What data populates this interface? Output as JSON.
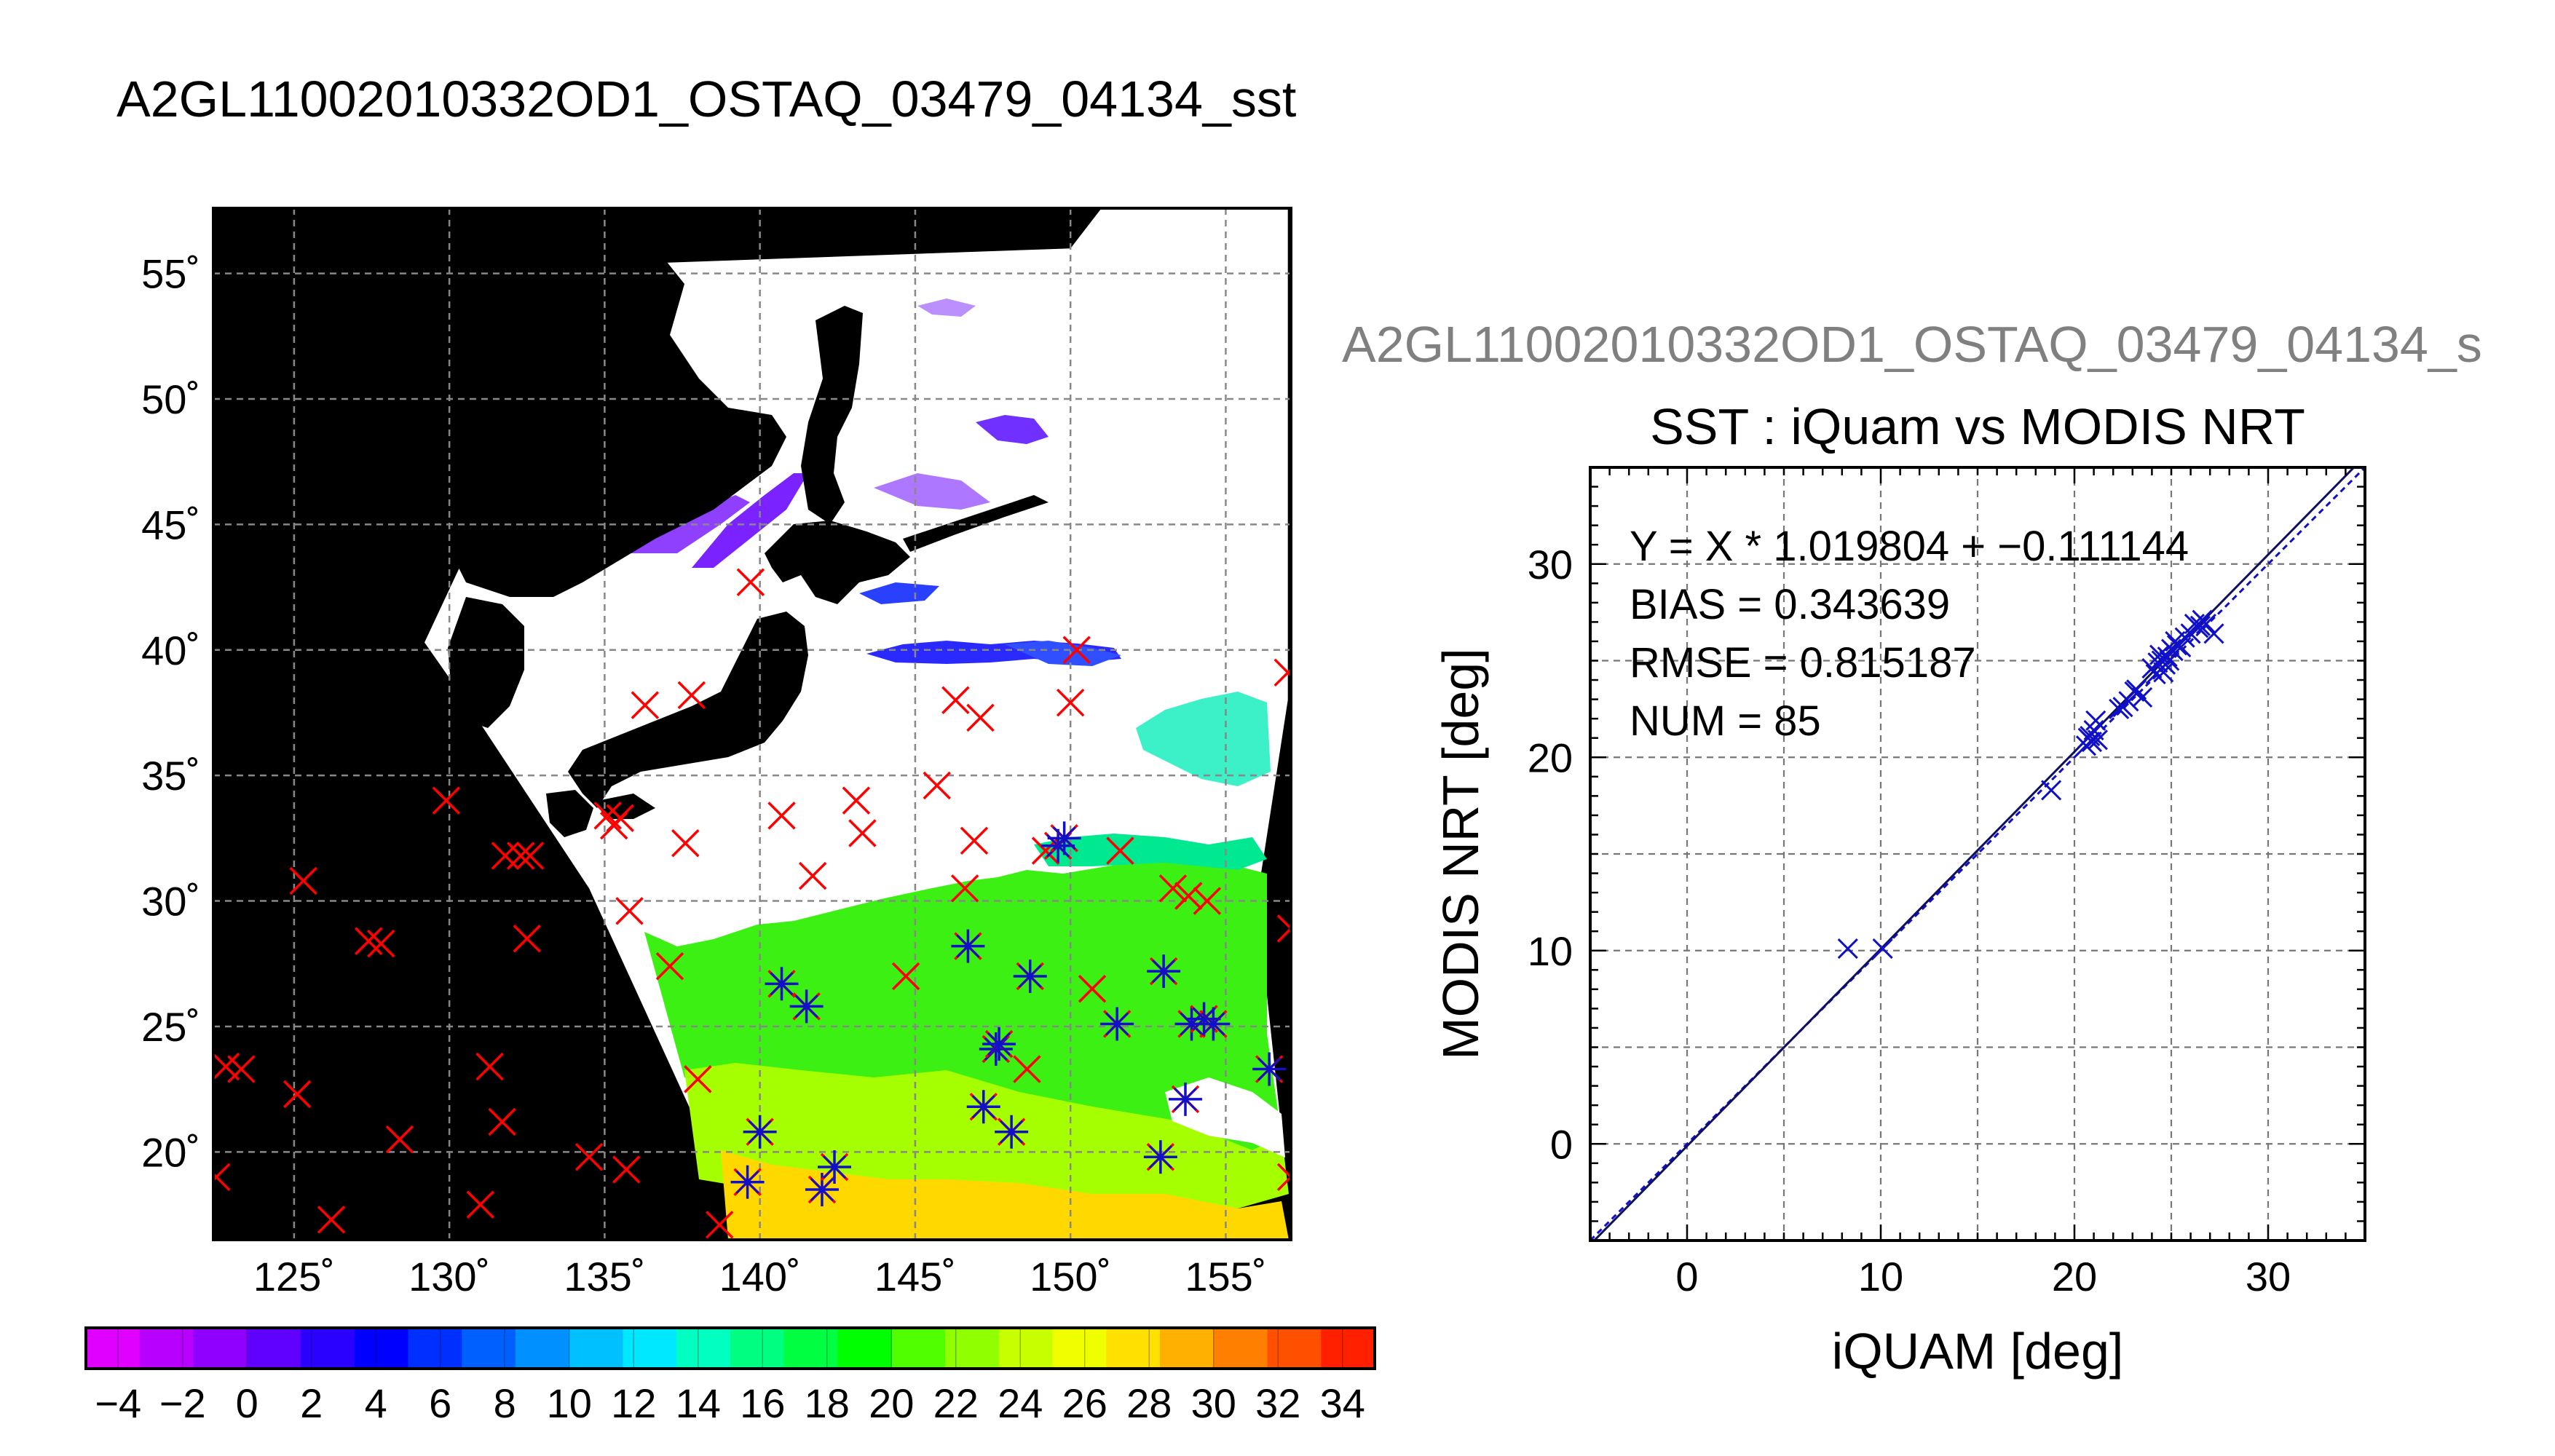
{
  "page_title": "A2GL11002010332OD1_OSTAQ_03479_04134_sst",
  "chart_data": [
    {
      "type": "map",
      "x_ticks": [
        125,
        130,
        135,
        140,
        145,
        150,
        155
      ],
      "x_tick_labels": [
        "125˚",
        "130˚",
        "135˚",
        "140˚",
        "145˚",
        "150˚",
        "155˚"
      ],
      "y_ticks": [
        20,
        25,
        30,
        35,
        40,
        45,
        50,
        55
      ],
      "y_tick_labels": [
        "20˚",
        "25˚",
        "30˚",
        "35˚",
        "40˚",
        "45˚",
        "50˚",
        "55˚"
      ],
      "xlim": [
        122.4,
        157.1
      ],
      "ylim": [
        16.5,
        57.6
      ],
      "grid": true,
      "swath_polygon": [
        [
          134.0,
          55.3
        ],
        [
          150.0,
          56.0
        ],
        [
          151.0,
          57.6
        ],
        [
          157.0,
          57.6
        ],
        [
          157.0,
          38.0
        ],
        [
          156.0,
          30.0
        ],
        [
          157.0,
          18.5
        ],
        [
          140.0,
          16.5
        ],
        [
          139.5,
          17.0
        ],
        [
          134.5,
          30.5
        ],
        [
          130.5,
          38.0
        ],
        [
          129.2,
          40.3
        ],
        [
          134.0,
          53.0
        ]
      ],
      "matchup_markers": {
        "unmatched_color": "#ff0000",
        "matched_color": "#1010c8",
        "points": [
          {
            "lon": 122.5,
            "lat": 19.0
          },
          {
            "lon": 122.8,
            "lat": 23.4
          },
          {
            "lon": 123.3,
            "lat": 23.3
          },
          {
            "lon": 125.1,
            "lat": 22.3
          },
          {
            "lon": 125.3,
            "lat": 30.8
          },
          {
            "lon": 126.2,
            "lat": 17.3
          },
          {
            "lon": 127.4,
            "lat": 28.4
          },
          {
            "lon": 127.8,
            "lat": 28.3
          },
          {
            "lon": 128.4,
            "lat": 20.5
          },
          {
            "lon": 129.9,
            "lat": 34.0
          },
          {
            "lon": 131.0,
            "lat": 17.9
          },
          {
            "lon": 131.3,
            "lat": 23.4
          },
          {
            "lon": 131.7,
            "lat": 21.2
          },
          {
            "lon": 131.8,
            "lat": 31.8
          },
          {
            "lon": 132.3,
            "lat": 31.8
          },
          {
            "lon": 132.6,
            "lat": 31.8
          },
          {
            "lon": 132.5,
            "lat": 28.5
          },
          {
            "lon": 134.5,
            "lat": 19.8
          },
          {
            "lon": 135.1,
            "lat": 33.4
          },
          {
            "lon": 135.3,
            "lat": 33.0
          },
          {
            "lon": 135.5,
            "lat": 33.3
          },
          {
            "lon": 135.7,
            "lat": 19.3
          },
          {
            "lon": 135.8,
            "lat": 29.6
          },
          {
            "lon": 136.3,
            "lat": 37.8
          },
          {
            "lon": 137.1,
            "lat": 27.4
          },
          {
            "lon": 137.6,
            "lat": 32.3
          },
          {
            "lon": 137.8,
            "lat": 38.2
          },
          {
            "lon": 138.0,
            "lat": 22.9
          },
          {
            "lon": 138.7,
            "lat": 17.1
          },
          {
            "lon": 139.7,
            "lat": 42.7
          },
          {
            "lon": 140.7,
            "lat": 33.4
          },
          {
            "lon": 141.7,
            "lat": 31.0
          },
          {
            "lon": 143.1,
            "lat": 34.0
          },
          {
            "lon": 143.3,
            "lat": 32.7
          },
          {
            "lon": 144.7,
            "lat": 27.0
          },
          {
            "lon": 145.7,
            "lat": 34.6
          },
          {
            "lon": 146.3,
            "lat": 38.0
          },
          {
            "lon": 146.6,
            "lat": 30.5
          },
          {
            "lon": 146.9,
            "lat": 32.4
          },
          {
            "lon": 147.1,
            "lat": 37.3
          },
          {
            "lon": 148.6,
            "lat": 23.3
          },
          {
            "lon": 149.2,
            "lat": 32.0
          },
          {
            "lon": 150.0,
            "lat": 37.9
          },
          {
            "lon": 150.2,
            "lat": 40.0
          },
          {
            "lon": 150.7,
            "lat": 26.5
          },
          {
            "lon": 151.6,
            "lat": 32.0
          },
          {
            "lon": 153.3,
            "lat": 30.5
          },
          {
            "lon": 153.8,
            "lat": 30.2
          },
          {
            "lon": 154.4,
            "lat": 30.0
          },
          {
            "lon": 157.0,
            "lat": 39.1
          },
          {
            "lon": 157.1,
            "lat": 28.9
          },
          {
            "lon": 157.1,
            "lat": 19.0
          },
          {
            "lon": 139.6,
            "lat": 18.8,
            "matched": true
          },
          {
            "lon": 140.0,
            "lat": 20.8,
            "matched": true
          },
          {
            "lon": 140.7,
            "lat": 26.7,
            "matched": true
          },
          {
            "lon": 141.5,
            "lat": 25.8,
            "matched": true
          },
          {
            "lon": 142.0,
            "lat": 18.5,
            "matched": true
          },
          {
            "lon": 142.4,
            "lat": 19.4,
            "matched": true
          },
          {
            "lon": 146.7,
            "lat": 28.2,
            "matched": true
          },
          {
            "lon": 147.2,
            "lat": 21.8,
            "matched": true
          },
          {
            "lon": 147.6,
            "lat": 24.1,
            "matched": true
          },
          {
            "lon": 147.7,
            "lat": 24.3,
            "matched": true
          },
          {
            "lon": 148.1,
            "lat": 20.8,
            "matched": true
          },
          {
            "lon": 148.7,
            "lat": 27.0,
            "matched": true
          },
          {
            "lon": 149.6,
            "lat": 32.2,
            "matched": true
          },
          {
            "lon": 149.8,
            "lat": 32.5,
            "matched": true
          },
          {
            "lon": 151.5,
            "lat": 25.1,
            "matched": true
          },
          {
            "lon": 152.9,
            "lat": 19.8,
            "matched": true
          },
          {
            "lon": 153.0,
            "lat": 27.2,
            "matched": true
          },
          {
            "lon": 153.7,
            "lat": 22.1,
            "matched": true
          },
          {
            "lon": 153.9,
            "lat": 25.1,
            "matched": true
          },
          {
            "lon": 154.3,
            "lat": 25.3,
            "matched": true
          },
          {
            "lon": 154.6,
            "lat": 25.1,
            "matched": true
          },
          {
            "lon": 156.4,
            "lat": 23.3,
            "matched": true
          }
        ]
      }
    },
    {
      "type": "colorbar",
      "range": [
        -5,
        35
      ],
      "tick_values": [
        -4,
        -2,
        0,
        2,
        4,
        6,
        8,
        10,
        12,
        14,
        16,
        18,
        20,
        22,
        24,
        26,
        28,
        30,
        32,
        34
      ],
      "tick_labels": [
        "−4",
        "−2",
        "0",
        "2",
        "4",
        "6",
        "8",
        "10",
        "12",
        "14",
        "16",
        "18",
        "20",
        "22",
        "24",
        "26",
        "28",
        "30",
        "32",
        "34"
      ],
      "colors": [
        "#e000ff",
        "#b800ff",
        "#9000ff",
        "#6000ff",
        "#2a00ff",
        "#0000ff",
        "#0030ff",
        "#0060ff",
        "#0090ff",
        "#00c0ff",
        "#00e8ff",
        "#00ffc0",
        "#00ff80",
        "#00ff40",
        "#00ff00",
        "#50ff00",
        "#90ff00",
        "#c8ff00",
        "#f0ff00",
        "#ffe000",
        "#ffb000",
        "#ff8000",
        "#ff5000",
        "#ff2000"
      ]
    },
    {
      "type": "scatter",
      "filename_label": "A2GL11002010332OD1_OSTAQ_03479_04134_s",
      "title": "SST : iQuam vs MODIS NRT",
      "xlabel": "iQUAM [deg]",
      "ylabel": "MODIS NRT [deg]",
      "xlim": [
        -5,
        35
      ],
      "ylim": [
        -5,
        35
      ],
      "x_ticks": [
        0,
        10,
        20,
        30
      ],
      "y_ticks": [
        0,
        10,
        20,
        30
      ],
      "grid": true,
      "annotations": [
        "Y = X * 1.019804 + −0.111144",
        "BIAS = 0.343639",
        "RMSE = 0.815187",
        "NUM = 85"
      ],
      "fit": {
        "slope": 1.019804,
        "intercept": -0.111144
      },
      "marker_color": "#1010c8",
      "points": [
        [
          8.3,
          10.1
        ],
        [
          10.1,
          10.1
        ],
        [
          18.8,
          18.3
        ],
        [
          20.6,
          20.6
        ],
        [
          20.8,
          21.1
        ],
        [
          20.9,
          20.8
        ],
        [
          21.0,
          21.4
        ],
        [
          21.1,
          21.9
        ],
        [
          21.2,
          20.9
        ],
        [
          20.7,
          21.0
        ],
        [
          22.3,
          22.5
        ],
        [
          22.5,
          22.6
        ],
        [
          22.8,
          22.9
        ],
        [
          23.1,
          23.4
        ],
        [
          23.2,
          23.5
        ],
        [
          23.5,
          23.1
        ],
        [
          24.0,
          24.6
        ],
        [
          24.2,
          24.3
        ],
        [
          24.3,
          24.9
        ],
        [
          24.4,
          25.3
        ],
        [
          24.5,
          25.0
        ],
        [
          24.6,
          24.4
        ],
        [
          24.7,
          24.8
        ],
        [
          24.8,
          25.2
        ],
        [
          24.9,
          25.0
        ],
        [
          25.0,
          25.6
        ],
        [
          25.1,
          25.5
        ],
        [
          25.2,
          26.0
        ],
        [
          25.3,
          25.8
        ],
        [
          25.5,
          25.7
        ],
        [
          25.7,
          26.2
        ],
        [
          26.0,
          26.4
        ],
        [
          26.2,
          26.9
        ],
        [
          26.4,
          26.7
        ],
        [
          26.5,
          26.8
        ],
        [
          26.6,
          27.1
        ],
        [
          26.8,
          26.9
        ],
        [
          27.2,
          26.4
        ]
      ]
    }
  ]
}
